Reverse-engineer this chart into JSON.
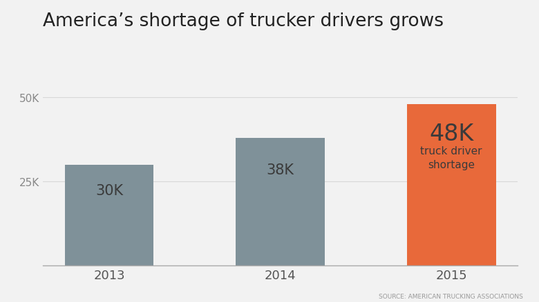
{
  "title": "America’s shortage of trucker drivers grows",
  "categories": [
    "2013",
    "2014",
    "2015"
  ],
  "values": [
    30000,
    38000,
    48000
  ],
  "bar_labels": [
    "30K",
    "38K",
    "48K"
  ],
  "bar_colors": [
    "#7f9199",
    "#7f9199",
    "#e8693a"
  ],
  "highlight_label_large": "48K",
  "highlight_label_small": "truck driver\nshortage",
  "source": "SOURCE: AMERICAN TRUCKING ASSOCIATIONS",
  "background_color": "#f2f2f2",
  "yticks": [
    25000,
    50000
  ],
  "ytick_labels": [
    "25K",
    "50K"
  ],
  "ylim": [
    0,
    54000
  ],
  "title_fontsize": 19,
  "bar_label_fontsize": 15,
  "highlight_large_fontsize": 24,
  "highlight_small_fontsize": 11,
  "source_fontsize": 6.5,
  "xtick_fontsize": 13,
  "ytick_fontsize": 11
}
